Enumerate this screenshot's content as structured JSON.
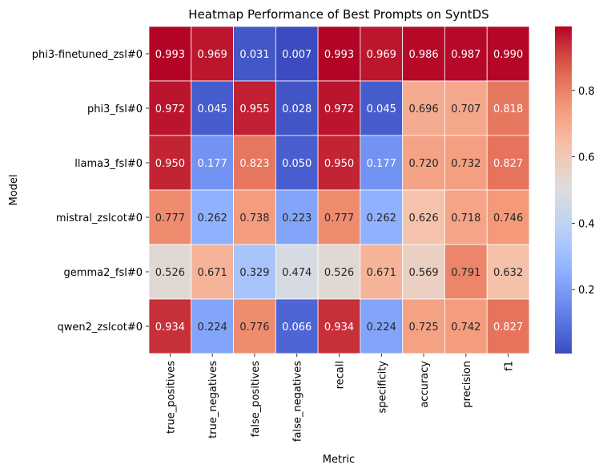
{
  "chart_data": {
    "type": "heatmap",
    "title": "Heatmap Performance of Best Prompts on SyntDS",
    "xlabel": "Metric",
    "ylabel": "Model",
    "columns": [
      "true_positives",
      "true_negatives",
      "false_positives",
      "false_negatives",
      "recall",
      "specificity",
      "accuracy",
      "precision",
      "f1"
    ],
    "rows": [
      "phi3-finetuned_zsl#0",
      "phi3_fsl#0",
      "llama3_fsl#0",
      "mistral_zslcot#0",
      "gemma2_fsl#0",
      "qwen2_zslcot#0"
    ],
    "values": [
      [
        0.993,
        0.969,
        0.031,
        0.007,
        0.993,
        0.969,
        0.986,
        0.987,
        0.99
      ],
      [
        0.972,
        0.045,
        0.955,
        0.028,
        0.972,
        0.045,
        0.696,
        0.707,
        0.818
      ],
      [
        0.95,
        0.177,
        0.823,
        0.05,
        0.95,
        0.177,
        0.72,
        0.732,
        0.827
      ],
      [
        0.777,
        0.262,
        0.738,
        0.223,
        0.777,
        0.262,
        0.626,
        0.718,
        0.746
      ],
      [
        0.526,
        0.671,
        0.329,
        0.474,
        0.526,
        0.671,
        0.569,
        0.791,
        0.632
      ],
      [
        0.934,
        0.224,
        0.776,
        0.066,
        0.934,
        0.224,
        0.725,
        0.742,
        0.827
      ]
    ],
    "value_labels": [
      [
        "0.993",
        "0.969",
        "0.031",
        "0.007",
        "0.993",
        "0.969",
        "0.986",
        "0.987",
        "0.990"
      ],
      [
        "0.972",
        "0.045",
        "0.955",
        "0.028",
        "0.972",
        "0.045",
        "0.696",
        "0.707",
        "0.818"
      ],
      [
        "0.950",
        "0.177",
        "0.823",
        "0.050",
        "0.950",
        "0.177",
        "0.720",
        "0.732",
        "0.827"
      ],
      [
        "0.777",
        "0.262",
        "0.738",
        "0.223",
        "0.777",
        "0.262",
        "0.626",
        "0.718",
        "0.746"
      ],
      [
        "0.526",
        "0.671",
        "0.329",
        "0.474",
        "0.526",
        "0.671",
        "0.569",
        "0.791",
        "0.632"
      ],
      [
        "0.934",
        "0.224",
        "0.776",
        "0.066",
        "0.934",
        "0.224",
        "0.725",
        "0.742",
        "0.827"
      ]
    ],
    "colormap": "coolwarm",
    "colorbar": {
      "range": [
        0.007,
        0.993
      ],
      "ticks": [
        0.2,
        0.4,
        0.6,
        0.8
      ],
      "tick_labels": [
        "0.2",
        "0.4",
        "0.6",
        "0.8"
      ],
      "position": "right"
    },
    "colors": {
      "low": "#3b4cc0",
      "mid": "#dddddd",
      "high": "#b40426",
      "cell_border": "#ffffff"
    }
  }
}
